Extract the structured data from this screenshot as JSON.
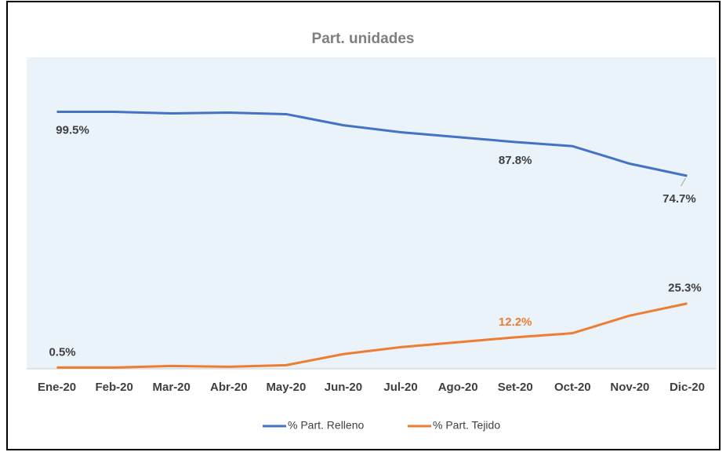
{
  "chart_data": {
    "type": "line",
    "title": "Part. unidades",
    "categories": [
      "Ene-20",
      "Feb-20",
      "Mar-20",
      "Abr-20",
      "May-20",
      "Jun-20",
      "Jul-20",
      "Ago-20",
      "Set-20",
      "Oct-20",
      "Nov-20",
      "Dic-20"
    ],
    "ylim": [
      0,
      120
    ],
    "legend": "bottom",
    "series": [
      {
        "name": "% Part. Relleno",
        "color": "#4472c4",
        "values": [
          99.5,
          99.5,
          98.9,
          99.2,
          98.6,
          94.3,
          91.6,
          89.7,
          87.8,
          86.2,
          79.4,
          74.7
        ],
        "value_labels": [
          "99.5%",
          null,
          null,
          null,
          null,
          null,
          null,
          null,
          "87.8%",
          null,
          null,
          "74.7%"
        ],
        "label_colors": [
          "#404040",
          null,
          null,
          null,
          null,
          null,
          null,
          null,
          "#404040",
          null,
          null,
          "#404040"
        ]
      },
      {
        "name": "% Part. Tejido",
        "color": "#ed7d31",
        "values": [
          0.5,
          0.5,
          1.1,
          0.8,
          1.4,
          5.7,
          8.4,
          10.3,
          12.2,
          13.8,
          20.6,
          25.3
        ],
        "value_labels": [
          "0.5%",
          null,
          null,
          null,
          null,
          null,
          null,
          null,
          "12.2%",
          null,
          null,
          "25.3%"
        ],
        "label_colors": [
          "#404040",
          null,
          null,
          null,
          null,
          null,
          null,
          null,
          "#ed7d31",
          null,
          null,
          "#404040"
        ]
      }
    ]
  }
}
